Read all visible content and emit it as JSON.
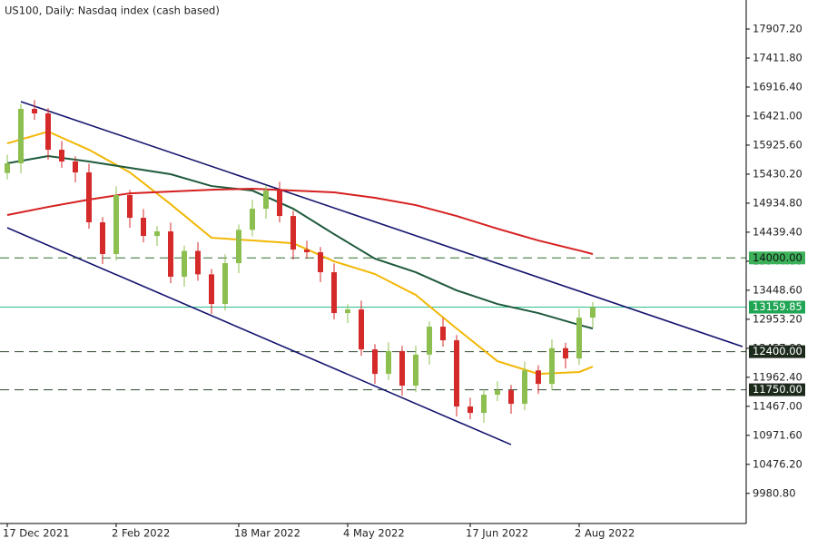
{
  "chart_data": {
    "type": "candlestick",
    "title": "US100, Daily:  Nasdaq index (cash based)",
    "categories": [
      "17 Dec 2021",
      null,
      null,
      null,
      null,
      null,
      null,
      null,
      "2 Feb 2022",
      null,
      null,
      null,
      null,
      null,
      null,
      null,
      null,
      "18 Mar 2022",
      null,
      null,
      null,
      null,
      null,
      null,
      null,
      "4 May 2022",
      null,
      null,
      null,
      null,
      null,
      null,
      null,
      null,
      "17 Jun 2022",
      null,
      null,
      null,
      null,
      null,
      null,
      null,
      "2 Aug 2022",
      null
    ],
    "open": [
      15450,
      15615,
      16544,
      16467,
      15847,
      15646,
      15460,
      14608,
      14066,
      15073,
      14685,
      14376,
      14453,
      13679,
      14120,
      13720,
      13214,
      13911,
      14480,
      14840,
      15150,
      14716,
      14143,
      14097,
      13756,
      13059,
      13120,
      12439,
      12021,
      12410,
      11820,
      12350,
      12827,
      12594,
      11464,
      11355,
      11665,
      11742,
      11510,
      12080,
      11850,
      12460,
      12284,
      12981
    ],
    "high": [
      15765,
      16634,
      16694,
      16557,
      15997,
      15736,
      15610,
      14698,
      15223,
      15163,
      14835,
      14543,
      14603,
      14210,
      14270,
      13810,
      14061,
      14570,
      14990,
      15240,
      15300,
      14806,
      14293,
      14187,
      13906,
      13210,
      13270,
      12529,
      12560,
      12500,
      12500,
      12917,
      12977,
      12684,
      11614,
      11755,
      11892,
      11832,
      12230,
      12170,
      12610,
      12550,
      13131,
      13250
    ],
    "low": [
      15340,
      15445,
      16357,
      15677,
      15536,
      15290,
      14498,
      13896,
      13956,
      14515,
      14266,
      14206,
      13569,
      13509,
      13610,
      13044,
      13104,
      13741,
      14370,
      14670,
      14606,
      13973,
      13987,
      13586,
      12949,
      12889,
      12329,
      11851,
      11911,
      11650,
      11710,
      12180,
      12484,
      11294,
      11245,
      11185,
      11555,
      11340,
      11400,
      11680,
      11740,
      12114,
      12174,
      12811
    ],
    "close": [
      15615,
      16544,
      16467,
      15847,
      15646,
      15460,
      14608,
      14066,
      15073,
      14685,
      14376,
      14453,
      13679,
      14120,
      13720,
      13214,
      13911,
      14480,
      14840,
      15150,
      14716,
      14143,
      14097,
      13756,
      13059,
      13120,
      12439,
      12021,
      12410,
      11820,
      12350,
      12827,
      12594,
      11464,
      11355,
      11665,
      11742,
      11510,
      12080,
      11850,
      12460,
      12284,
      12981,
      13160
    ],
    "up_color": "#8cbf4f",
    "down_color": "#d42a2a",
    "overlays": [
      {
        "color": "#f2b705",
        "x": [
          0,
          3,
          6,
          9,
          12,
          15,
          18,
          21,
          24,
          27,
          30,
          33,
          36,
          39,
          42,
          43
        ],
        "values": [
          15955,
          16157,
          15847,
          15460,
          14917,
          14344,
          14298,
          14251,
          13942,
          13725,
          13368,
          12795,
          12238,
          12021,
          12052,
          12145
        ]
      },
      {
        "color": "#1f5a3c",
        "x": [
          0,
          3,
          6,
          9,
          12,
          15,
          18,
          21,
          24,
          27,
          30,
          33,
          36,
          39,
          42,
          43
        ],
        "values": [
          15615,
          15738,
          15646,
          15537,
          15429,
          15227,
          15150,
          14840,
          14406,
          13988,
          13756,
          13446,
          13214,
          13059,
          12857,
          12795
        ]
      },
      {
        "color": "#d61f1f",
        "x": [
          0,
          3,
          6,
          9,
          12,
          15,
          18,
          21,
          24,
          27,
          30,
          33,
          36,
          39,
          42,
          43
        ],
        "values": [
          14732,
          14871,
          14995,
          15103,
          15134,
          15165,
          15181,
          15150,
          15119,
          15026,
          14902,
          14716,
          14499,
          14298,
          14127,
          14066
        ]
      }
    ],
    "trendlines": [
      {
        "color": "#14146e",
        "x": [
          1,
          54
        ],
        "values": [
          16668,
          12486
        ]
      },
      {
        "color": "#14146e",
        "x": [
          0,
          37
        ],
        "values": [
          14515,
          10813
        ]
      }
    ],
    "levels": [
      {
        "value": 14000,
        "label": "14000.00",
        "style": "dashed",
        "color": "#2e6b2e",
        "label_color": "#3cb15a",
        "text_color": "#111111"
      },
      {
        "value": 13159.85,
        "label": "13159.85",
        "style": "solid",
        "color": "#2bbf8a",
        "label_color": "#1fa554",
        "text_color": "#ffffff"
      },
      {
        "value": 12400,
        "label": "12400.00",
        "style": "dashed",
        "color": "#2e4a2e",
        "label_color": "#1c2a1c",
        "text_color": "#ffffff"
      },
      {
        "value": 11750,
        "label": "11750.00",
        "style": "dashed",
        "color": "#2e4a2e",
        "label_color": "#1c2a1c",
        "text_color": "#ffffff"
      }
    ],
    "ylim": [
      9466.8,
      18402.8
    ],
    "yticks": [
      {
        "value": 9980.8,
        "label": "9980.80"
      },
      {
        "value": 10476.2,
        "label": "10476.20"
      },
      {
        "value": 10971.6,
        "label": "10971.60"
      },
      {
        "value": 11467,
        "label": "11467.00"
      },
      {
        "value": 11962.4,
        "label": "11962.40"
      },
      {
        "value": 12457.8,
        "label": "12457.80"
      },
      {
        "value": 12953.2,
        "label": "12953.20"
      },
      {
        "value": 13448.6,
        "label": "13448.60"
      },
      {
        "value": 13944,
        "label": "13944.00"
      },
      {
        "value": 14439.4,
        "label": "14439.40"
      },
      {
        "value": 14934.8,
        "label": "14934.80"
      },
      {
        "value": 15430.2,
        "label": "15430.20"
      },
      {
        "value": 15925.6,
        "label": "15925.60"
      },
      {
        "value": 16421,
        "label": "16421.00"
      },
      {
        "value": 16916.4,
        "label": "16916.40"
      },
      {
        "value": 17411.8,
        "label": "17411.80"
      },
      {
        "value": 17907.2,
        "label": "17907.20"
      }
    ]
  }
}
